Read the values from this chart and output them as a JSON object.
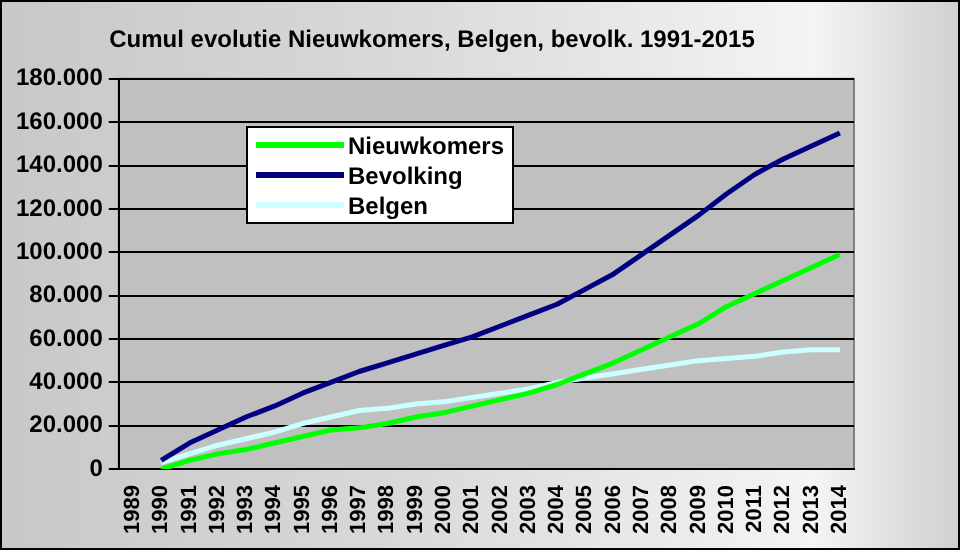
{
  "chart_data": {
    "type": "line",
    "title": "Cumul evolutie Nieuwkomers, Belgen, bevolk. 1991-2015",
    "categories": [
      "1989",
      "1990",
      "1991",
      "1992",
      "1993",
      "1994",
      "1995",
      "1996",
      "1997",
      "1998",
      "1999",
      "2000",
      "2001",
      "2002",
      "2003",
      "2004",
      "2005",
      "2006",
      "2007",
      "2008",
      "2009",
      "2010",
      "2011",
      "2012",
      "2013",
      "2014"
    ],
    "series": [
      {
        "name": "Nieuwkomers",
        "color": "#00ff00",
        "values": [
          null,
          0,
          4000,
          7000,
          9000,
          12000,
          15000,
          18000,
          19000,
          21000,
          24000,
          26000,
          29000,
          32000,
          35000,
          39000,
          44000,
          49000,
          55000,
          61000,
          67000,
          75000,
          81000,
          87000,
          93000,
          99000
        ]
      },
      {
        "name": "Bevolking",
        "color": "#000080",
        "values": [
          null,
          4000,
          12000,
          18000,
          24000,
          29000,
          35000,
          40000,
          45000,
          49000,
          53000,
          57000,
          61000,
          66000,
          71000,
          76000,
          83000,
          90000,
          99000,
          108000,
          117000,
          127000,
          136000,
          143000,
          149000,
          155000
        ]
      },
      {
        "name": "Belgen",
        "color": "#ccffff",
        "values": [
          null,
          3000,
          7000,
          11000,
          14000,
          17000,
          21000,
          24000,
          27000,
          28000,
          30000,
          31000,
          33000,
          35000,
          37000,
          40000,
          42000,
          44000,
          46000,
          48000,
          50000,
          51000,
          52000,
          54000,
          55000,
          55000
        ]
      }
    ],
    "ylim": [
      0,
      180000
    ],
    "yticks": [
      {
        "value": 0,
        "label": "0"
      },
      {
        "value": 20000,
        "label": "20.000"
      },
      {
        "value": 40000,
        "label": "40.000"
      },
      {
        "value": 60000,
        "label": "60.000"
      },
      {
        "value": 80000,
        "label": "80.000"
      },
      {
        "value": 100000,
        "label": "100.000"
      },
      {
        "value": 120000,
        "label": "120.000"
      },
      {
        "value": 140000,
        "label": "140.000"
      },
      {
        "value": 160000,
        "label": "160.000"
      },
      {
        "value": 180000,
        "label": "180.000"
      }
    ],
    "grid": "y",
    "legend": "top left",
    "marker": "none",
    "line_style": "solid"
  }
}
